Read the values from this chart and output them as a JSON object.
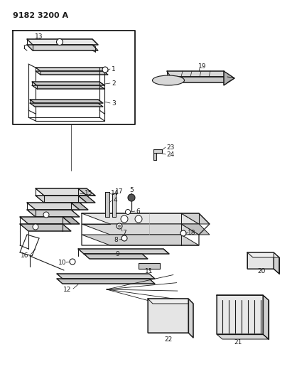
{
  "title": "9182 3200 A",
  "bg": "#ffffff",
  "lc": "#1a1a1a",
  "fig_w": 4.11,
  "fig_h": 5.33,
  "dpi": 100
}
